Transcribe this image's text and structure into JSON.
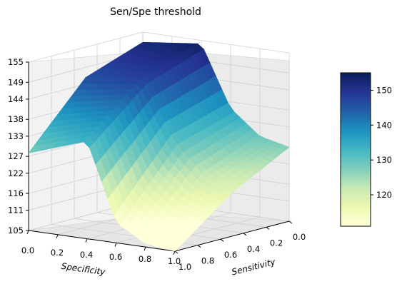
{
  "chart_data": {
    "type": "surface",
    "title": "Sen/Spe threshold",
    "xlabel": "Specificity",
    "ylabel": "Sensitivity",
    "x_ticks": [
      "0.0",
      "0.2",
      "0.4",
      "0.6",
      "0.8",
      "1.0"
    ],
    "y_ticks": [
      "1.0",
      "0.8",
      "0.6",
      "0.4",
      "0.2",
      "0.0"
    ],
    "z_ticks": [
      "105",
      "111",
      "116",
      "122",
      "127",
      "133",
      "138",
      "144",
      "149",
      "155"
    ],
    "zlim": [
      105,
      155
    ],
    "colorbar_ticks": [
      "120",
      "130",
      "140",
      "150"
    ],
    "colorbar_range": [
      111,
      155
    ],
    "colormap": [
      "#ffffd9",
      "#edf8b1",
      "#c7e9b4",
      "#7fcdbb",
      "#41b6c4",
      "#1d91c0",
      "#225ea8",
      "#253494",
      "#081d58"
    ],
    "grid": true,
    "surface_samples": [
      {
        "x": 0.0,
        "y": 0.0,
        "z": 152
      },
      {
        "x": 0.0,
        "y": 0.5,
        "z": 146
      },
      {
        "x": 0.0,
        "y": 1.0,
        "z": 128
      },
      {
        "x": 0.4,
        "y": 0.0,
        "z": 154
      },
      {
        "x": 0.4,
        "y": 0.5,
        "z": 148
      },
      {
        "x": 0.4,
        "y": 1.0,
        "z": 134
      },
      {
        "x": 0.6,
        "y": 0.0,
        "z": 136
      },
      {
        "x": 0.6,
        "y": 0.5,
        "z": 131
      },
      {
        "x": 0.6,
        "y": 1.0,
        "z": 111
      },
      {
        "x": 0.8,
        "y": 0.0,
        "z": 129
      },
      {
        "x": 0.8,
        "y": 0.5,
        "z": 122
      },
      {
        "x": 0.8,
        "y": 1.0,
        "z": 106
      },
      {
        "x": 1.0,
        "y": 0.0,
        "z": 127
      },
      {
        "x": 1.0,
        "y": 0.5,
        "z": 118
      },
      {
        "x": 1.0,
        "y": 1.0,
        "z": 105
      }
    ]
  }
}
